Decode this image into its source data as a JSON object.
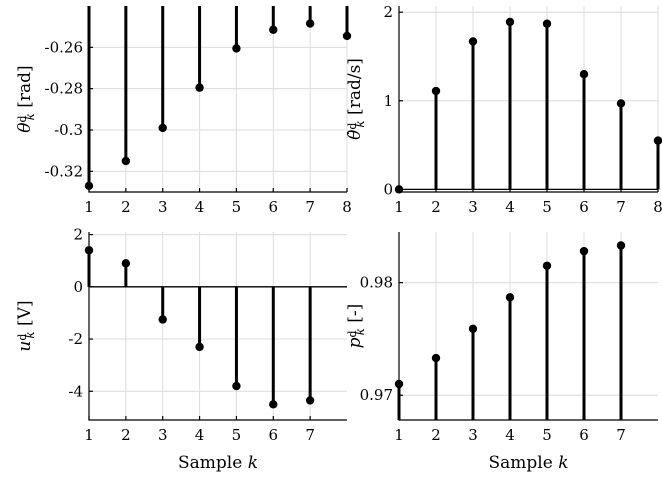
{
  "chart_data": [
    {
      "type": "stem",
      "x": [
        1,
        2,
        3,
        4,
        5,
        6,
        7,
        8
      ],
      "values": [
        -0.327,
        -0.315,
        -0.299,
        -0.2795,
        -0.2605,
        -0.2515,
        -0.2485,
        -0.2545
      ],
      "ylabel": "θ_k^d [rad]",
      "xlabel": "",
      "ylim": [
        -0.33,
        -0.24
      ],
      "xlim": [
        1,
        8
      ],
      "yticks": [
        -0.32,
        -0.3,
        -0.28,
        -0.26
      ],
      "ytick_labels": [
        "-0.32",
        "-0.3",
        "-0.28",
        "-0.26"
      ],
      "xticks": [
        1,
        2,
        3,
        4,
        5,
        6,
        7,
        8
      ],
      "xtick_labels": [
        "1",
        "2",
        "3",
        "4",
        "5",
        "6",
        "7",
        "8"
      ],
      "baseline": -0.24,
      "grid": true
    },
    {
      "type": "stem",
      "x": [
        1,
        2,
        3,
        4,
        5,
        6,
        7,
        8
      ],
      "values": [
        0.0,
        1.11,
        1.67,
        1.89,
        1.87,
        1.3,
        0.97,
        0.55
      ],
      "ylabel": "θ̇_k^d [rad/s]",
      "xlabel": "",
      "ylim": [
        -0.03,
        2.07
      ],
      "xlim": [
        1,
        8
      ],
      "yticks": [
        0,
        1,
        2
      ],
      "ytick_labels": [
        "0",
        "1",
        "2"
      ],
      "xticks": [
        1,
        2,
        3,
        4,
        5,
        6,
        7,
        8
      ],
      "xtick_labels": [
        "1",
        "2",
        "3",
        "4",
        "5",
        "6",
        "7",
        "8"
      ],
      "baseline": 0,
      "grid": true
    },
    {
      "type": "stem",
      "x": [
        1,
        2,
        3,
        4,
        5,
        6,
        7
      ],
      "values": [
        1.4,
        0.9,
        -1.25,
        -2.3,
        -3.8,
        -4.5,
        -4.35
      ],
      "ylabel": "u_k^d [V]",
      "xlabel": "Sample k",
      "ylim": [
        -5.1,
        2.1
      ],
      "xlim": [
        1,
        8
      ],
      "yticks": [
        -4,
        -2,
        0,
        2
      ],
      "ytick_labels": [
        "-4",
        "-2",
        "0",
        "2"
      ],
      "xticks": [
        1,
        2,
        3,
        4,
        5,
        6,
        7
      ],
      "xtick_labels": [
        "1",
        "2",
        "3",
        "4",
        "5",
        "6",
        "7"
      ],
      "baseline": 0,
      "grid": true
    },
    {
      "type": "stem",
      "x": [
        1,
        2,
        3,
        4,
        5,
        6,
        7
      ],
      "values": [
        0.971,
        0.9733,
        0.9759,
        0.9787,
        0.9815,
        0.9828,
        0.9833
      ],
      "ylabel": "p_k^d [-]",
      "xlabel": "Sample k",
      "ylim": [
        0.9678,
        0.9845
      ],
      "xlim": [
        1,
        8
      ],
      "yticks": [
        0.97,
        0.98
      ],
      "ytick_labels": [
        "0.97",
        "0.98"
      ],
      "xticks": [
        1,
        2,
        3,
        4,
        5,
        6,
        7
      ],
      "xtick_labels": [
        "1",
        "2",
        "3",
        "4",
        "5",
        "6",
        "7"
      ],
      "baseline": 0.9678,
      "grid": true
    }
  ]
}
